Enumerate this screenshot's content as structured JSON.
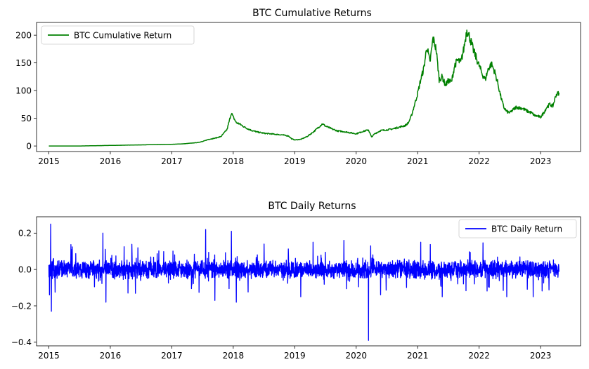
{
  "figure": {
    "background": "#ffffff"
  },
  "chart_data": [
    {
      "type": "line",
      "title": "BTC Cumulative Returns",
      "xlabel": "",
      "ylabel": "",
      "xlim": [
        2014.8,
        2023.65
      ],
      "ylim": [
        -10,
        223
      ],
      "xticks": [
        2015,
        2016,
        2017,
        2018,
        2019,
        2020,
        2021,
        2022,
        2023
      ],
      "xtick_labels": [
        "2015",
        "2016",
        "2017",
        "2018",
        "2019",
        "2020",
        "2021",
        "2022",
        "2023"
      ],
      "yticks": [
        0,
        50,
        100,
        150,
        200
      ],
      "ytick_labels": [
        "0",
        "50",
        "100",
        "150",
        "200"
      ],
      "grid": false,
      "legend": {
        "position": "top-left",
        "entries": [
          "BTC Cumulative Return"
        ]
      },
      "series": [
        {
          "name": "BTC Cumulative Return",
          "color": "#008000",
          "x": [
            2015.0,
            2015.5,
            2016.0,
            2016.5,
            2017.0,
            2017.2,
            2017.4,
            2017.5,
            2017.6,
            2017.7,
            2017.8,
            2017.9,
            2017.97,
            2018.0,
            2018.05,
            2018.1,
            2018.2,
            2018.3,
            2018.4,
            2018.5,
            2018.6,
            2018.7,
            2018.8,
            2018.9,
            2018.95,
            2019.0,
            2019.1,
            2019.2,
            2019.3,
            2019.4,
            2019.45,
            2019.5,
            2019.6,
            2019.7,
            2019.8,
            2019.9,
            2020.0,
            2020.1,
            2020.2,
            2020.25,
            2020.3,
            2020.4,
            2020.5,
            2020.6,
            2020.7,
            2020.8,
            2020.85,
            2020.9,
            2020.95,
            2021.0,
            2021.05,
            2021.1,
            2021.15,
            2021.2,
            2021.25,
            2021.3,
            2021.35,
            2021.4,
            2021.45,
            2021.5,
            2021.55,
            2021.6,
            2021.65,
            2021.7,
            2021.75,
            2021.8,
            2021.85,
            2021.9,
            2021.95,
            2022.0,
            2022.05,
            2022.1,
            2022.15,
            2022.2,
            2022.25,
            2022.3,
            2022.35,
            2022.4,
            2022.45,
            2022.5,
            2022.6,
            2022.7,
            2022.8,
            2022.85,
            2022.9,
            2022.95,
            2023.0,
            2023.05,
            2023.1,
            2023.15,
            2023.2,
            2023.25,
            2023.3
          ],
          "y": [
            0,
            0,
            1,
            2,
            3,
            4,
            6,
            8,
            12,
            14,
            17,
            30,
            60,
            52,
            42,
            40,
            33,
            28,
            25,
            23,
            22,
            21,
            20,
            18,
            13,
            11,
            12,
            17,
            25,
            35,
            40,
            36,
            31,
            27,
            26,
            24,
            22,
            26,
            29,
            16,
            22,
            28,
            29,
            31,
            34,
            37,
            42,
            55,
            75,
            95,
            120,
            140,
            180,
            150,
            195,
            175,
            120,
            125,
            110,
            118,
            115,
            145,
            155,
            150,
            175,
            210,
            195,
            175,
            160,
            145,
            130,
            120,
            140,
            148,
            135,
            115,
            90,
            70,
            62,
            60,
            70,
            68,
            62,
            60,
            55,
            54,
            52,
            60,
            70,
            75,
            72,
            92,
            96
          ]
        }
      ]
    },
    {
      "type": "line",
      "title": "BTC Daily Returns",
      "xlabel": "",
      "ylabel": "",
      "xlim": [
        2014.8,
        2023.65
      ],
      "ylim": [
        -0.42,
        0.29
      ],
      "xticks": [
        2015,
        2016,
        2017,
        2018,
        2019,
        2020,
        2021,
        2022,
        2023
      ],
      "xtick_labels": [
        "2015",
        "2016",
        "2017",
        "2018",
        "2019",
        "2020",
        "2021",
        "2022",
        "2023"
      ],
      "yticks": [
        0.2,
        0.0,
        -0.2,
        -0.4
      ],
      "ytick_labels": [
        "0.2",
        "0.0",
        "−0.2",
        "−0.4"
      ],
      "grid": false,
      "legend": {
        "position": "top-right",
        "entries": [
          "BTC Daily Return"
        ]
      },
      "series": [
        {
          "name": "BTC Daily Return",
          "color": "#0000ff",
          "x_range": [
            2015.0,
            2023.3
          ],
          "typical_abs_return": 0.035,
          "spikes": [
            {
              "x": 2015.01,
              "y": -0.14
            },
            {
              "x": 2015.03,
              "y": 0.25
            },
            {
              "x": 2015.04,
              "y": -0.23
            },
            {
              "x": 2015.88,
              "y": 0.2
            },
            {
              "x": 2015.93,
              "y": -0.18
            },
            {
              "x": 2016.45,
              "y": 0.12
            },
            {
              "x": 2017.55,
              "y": 0.22
            },
            {
              "x": 2017.7,
              "y": -0.17
            },
            {
              "x": 2017.97,
              "y": 0.21
            },
            {
              "x": 2018.05,
              "y": -0.18
            },
            {
              "x": 2018.5,
              "y": 0.14
            },
            {
              "x": 2019.1,
              "y": -0.15
            },
            {
              "x": 2019.3,
              "y": 0.15
            },
            {
              "x": 2019.8,
              "y": 0.16
            },
            {
              "x": 2020.2,
              "y": -0.39
            },
            {
              "x": 2021.05,
              "y": 0.15
            },
            {
              "x": 2021.4,
              "y": -0.15
            },
            {
              "x": 2022.45,
              "y": -0.15
            },
            {
              "x": 2022.88,
              "y": -0.15
            }
          ]
        }
      ]
    }
  ]
}
